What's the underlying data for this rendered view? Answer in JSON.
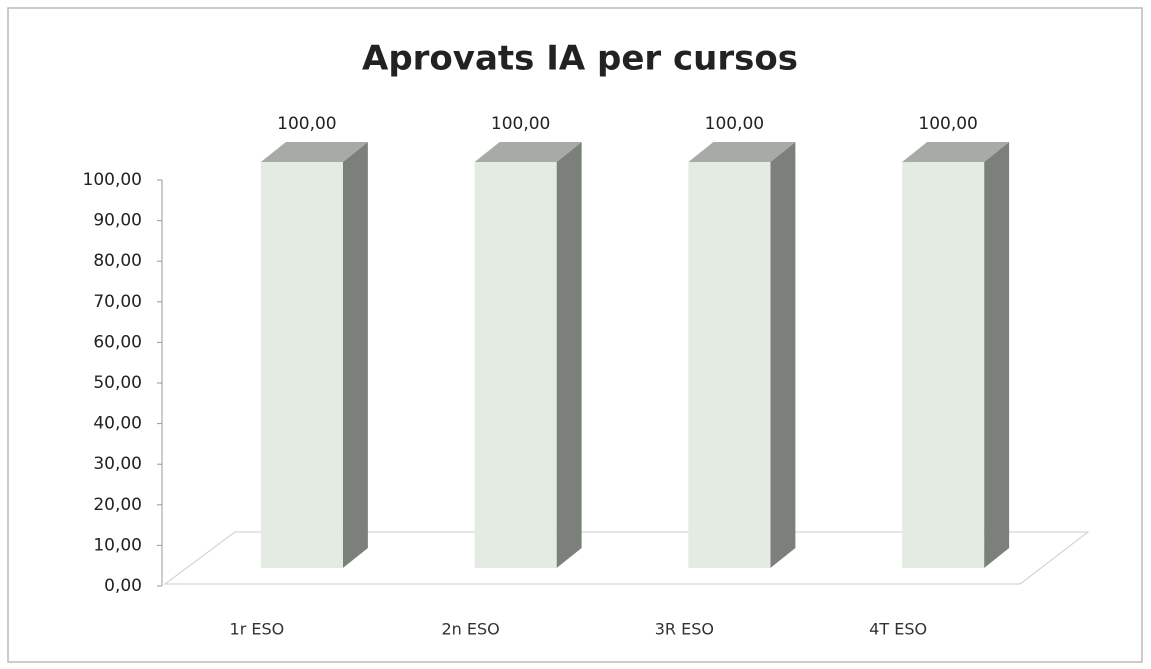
{
  "chart_data": {
    "type": "bar3d",
    "title": "Aprovats IA per cursos",
    "categories": [
      "1r ESO",
      "2n ESO",
      "3R ESO",
      "4T ESO"
    ],
    "values": [
      100,
      100,
      100,
      100
    ],
    "value_labels": [
      "100,00",
      "100,00",
      "100,00",
      "100,00"
    ],
    "color": "#e4ebe2",
    "ylim": [
      0,
      100
    ],
    "yticks": [
      {
        "value": 0,
        "label": "0,00"
      },
      {
        "value": 10,
        "label": "10,00"
      },
      {
        "value": 20,
        "label": "20,00"
      },
      {
        "value": 30,
        "label": "30,00"
      },
      {
        "value": 40,
        "label": "40,00"
      },
      {
        "value": 50,
        "label": "50,00"
      },
      {
        "value": 60,
        "label": "60,00"
      },
      {
        "value": 70,
        "label": "70,00"
      },
      {
        "value": 80,
        "label": "80,00"
      },
      {
        "value": 90,
        "label": "90,00"
      },
      {
        "value": 100,
        "label": "100,00"
      }
    ],
    "grid": false
  }
}
